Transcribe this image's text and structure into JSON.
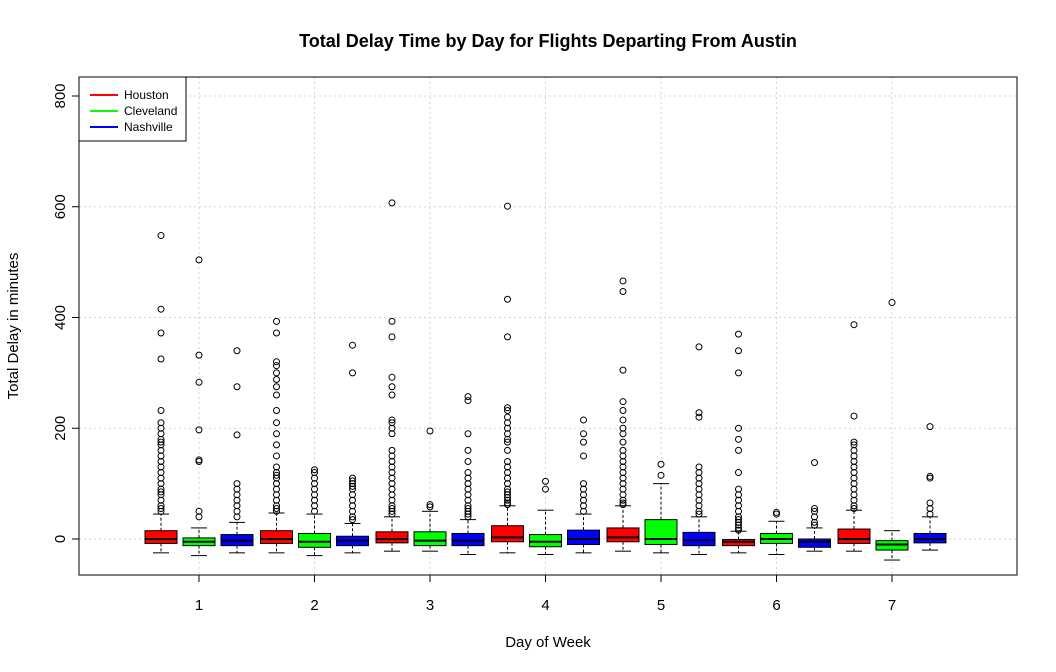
{
  "chart_data": {
    "type": "boxplot",
    "title": "Total Delay Time by Day for Flights Departing From Austin",
    "xlabel": "Day of Week",
    "ylabel": "Total Delay in minutes",
    "categories": [
      "1",
      "2",
      "3",
      "4",
      "5",
      "6",
      "7"
    ],
    "ylim": [
      -65,
      840
    ],
    "yticks": [
      0,
      200,
      400,
      600,
      800
    ],
    "grid": true,
    "legend_position": "top-left",
    "series": [
      {
        "name": "Houston",
        "color": "#FF0000",
        "boxes": [
          {
            "min": -25,
            "q1": -8,
            "median": 0,
            "q3": 15,
            "max": 45,
            "outliers": [
              50,
              55,
              60,
              70,
              80,
              85,
              90,
              100,
              110,
              120,
              130,
              140,
              150,
              160,
              170,
              175,
              180,
              190,
              200,
              210,
              232,
              325,
              372,
              415,
              548
            ]
          },
          {
            "min": -25,
            "q1": -8,
            "median": 0,
            "q3": 15,
            "max": 47,
            "outliers": [
              50,
              55,
              60,
              70,
              80,
              90,
              100,
              110,
              115,
              120,
              130,
              150,
              170,
              190,
              210,
              232,
              260,
              275,
              288,
              300,
              313,
              320,
              372,
              393
            ]
          },
          {
            "min": -22,
            "q1": -7,
            "median": 0,
            "q3": 13,
            "max": 40,
            "outliers": [
              45,
              50,
              55,
              60,
              70,
              80,
              90,
              100,
              110,
              120,
              130,
              140,
              150,
              160,
              190,
              200,
              210,
              215,
              260,
              275,
              292,
              365,
              393,
              607
            ]
          },
          {
            "min": -25,
            "q1": -5,
            "median": 3,
            "q3": 24,
            "max": 60,
            "outliers": [
              62,
              65,
              70,
              75,
              80,
              85,
              90,
              100,
              110,
              120,
              130,
              140,
              160,
              175,
              180,
              190,
              200,
              210,
              220,
              232,
              237,
              365,
              433,
              601
            ]
          },
          {
            "min": -22,
            "q1": -5,
            "median": 3,
            "q3": 20,
            "max": 60,
            "outliers": [
              62,
              65,
              70,
              80,
              90,
              100,
              110,
              120,
              130,
              140,
              150,
              160,
              175,
              190,
              200,
              215,
              232,
              248,
              305,
              447,
              466
            ]
          },
          {
            "min": -25,
            "q1": -12,
            "median": -5,
            "q3": -1,
            "max": 14,
            "outliers": [
              16,
              20,
              25,
              30,
              35,
              40,
              50,
              60,
              70,
              80,
              90,
              120,
              160,
              180,
              200,
              300,
              340,
              370
            ]
          },
          {
            "min": -22,
            "q1": -8,
            "median": 0,
            "q3": 18,
            "max": 52,
            "outliers": [
              55,
              60,
              70,
              80,
              90,
              100,
              110,
              120,
              130,
              140,
              150,
              160,
              170,
              175,
              222,
              387
            ]
          }
        ]
      },
      {
        "name": "Cleveland",
        "color": "#00FF00",
        "boxes": [
          {
            "min": -30,
            "q1": -12,
            "median": -5,
            "q3": 2,
            "max": 20,
            "outliers": [
              40,
              50,
              140,
              143,
              197,
              283,
              332,
              504
            ]
          },
          {
            "min": -30,
            "q1": -15,
            "median": -5,
            "q3": 10,
            "max": 45,
            "outliers": [
              50,
              60,
              70,
              80,
              90,
              100,
              110,
              120,
              125
            ]
          },
          {
            "min": -22,
            "q1": -12,
            "median": -3,
            "q3": 13,
            "max": 50,
            "outliers": [
              58,
              62,
              195
            ]
          },
          {
            "min": -28,
            "q1": -14,
            "median": -5,
            "q3": 8,
            "max": 52,
            "outliers": [
              90,
              104
            ]
          },
          {
            "min": -25,
            "q1": -10,
            "median": 0,
            "q3": 35,
            "max": 100,
            "outliers": [
              115,
              135
            ]
          },
          {
            "min": -28,
            "q1": -8,
            "median": 0,
            "q3": 10,
            "max": 32,
            "outliers": [
              45,
              48
            ]
          },
          {
            "min": -38,
            "q1": -20,
            "median": -10,
            "q3": -3,
            "max": 15,
            "outliers": [
              427
            ]
          }
        ]
      },
      {
        "name": "Nashville",
        "color": "#0000FF",
        "boxes": [
          {
            "min": -25,
            "q1": -12,
            "median": -3,
            "q3": 8,
            "max": 30,
            "outliers": [
              40,
              50,
              60,
              70,
              80,
              90,
              100,
              188,
              275,
              340
            ]
          },
          {
            "min": -25,
            "q1": -12,
            "median": -3,
            "q3": 5,
            "max": 28,
            "outliers": [
              35,
              40,
              50,
              60,
              70,
              80,
              90,
              95,
              100,
              105,
              110,
              300,
              350
            ]
          },
          {
            "min": -28,
            "q1": -12,
            "median": -3,
            "q3": 10,
            "max": 35,
            "outliers": [
              40,
              45,
              50,
              55,
              60,
              70,
              80,
              90,
              100,
              110,
              120,
              140,
              160,
              190,
              250,
              257
            ]
          },
          {
            "min": -25,
            "q1": -10,
            "median": 0,
            "q3": 16,
            "max": 45,
            "outliers": [
              50,
              60,
              70,
              80,
              90,
              100,
              150,
              175,
              190,
              215
            ]
          },
          {
            "min": -28,
            "q1": -12,
            "median": -2,
            "q3": 12,
            "max": 40,
            "outliers": [
              45,
              50,
              60,
              70,
              80,
              90,
              100,
              110,
              120,
              130,
              220,
              228,
              347
            ]
          },
          {
            "min": -22,
            "q1": -15,
            "median": -5,
            "q3": 0,
            "max": 20,
            "outliers": [
              25,
              30,
              40,
              50,
              55,
              138
            ]
          },
          {
            "min": -20,
            "q1": -7,
            "median": 0,
            "q3": 10,
            "max": 40,
            "outliers": [
              45,
              55,
              65,
              110,
              113,
              203
            ]
          }
        ]
      }
    ]
  }
}
